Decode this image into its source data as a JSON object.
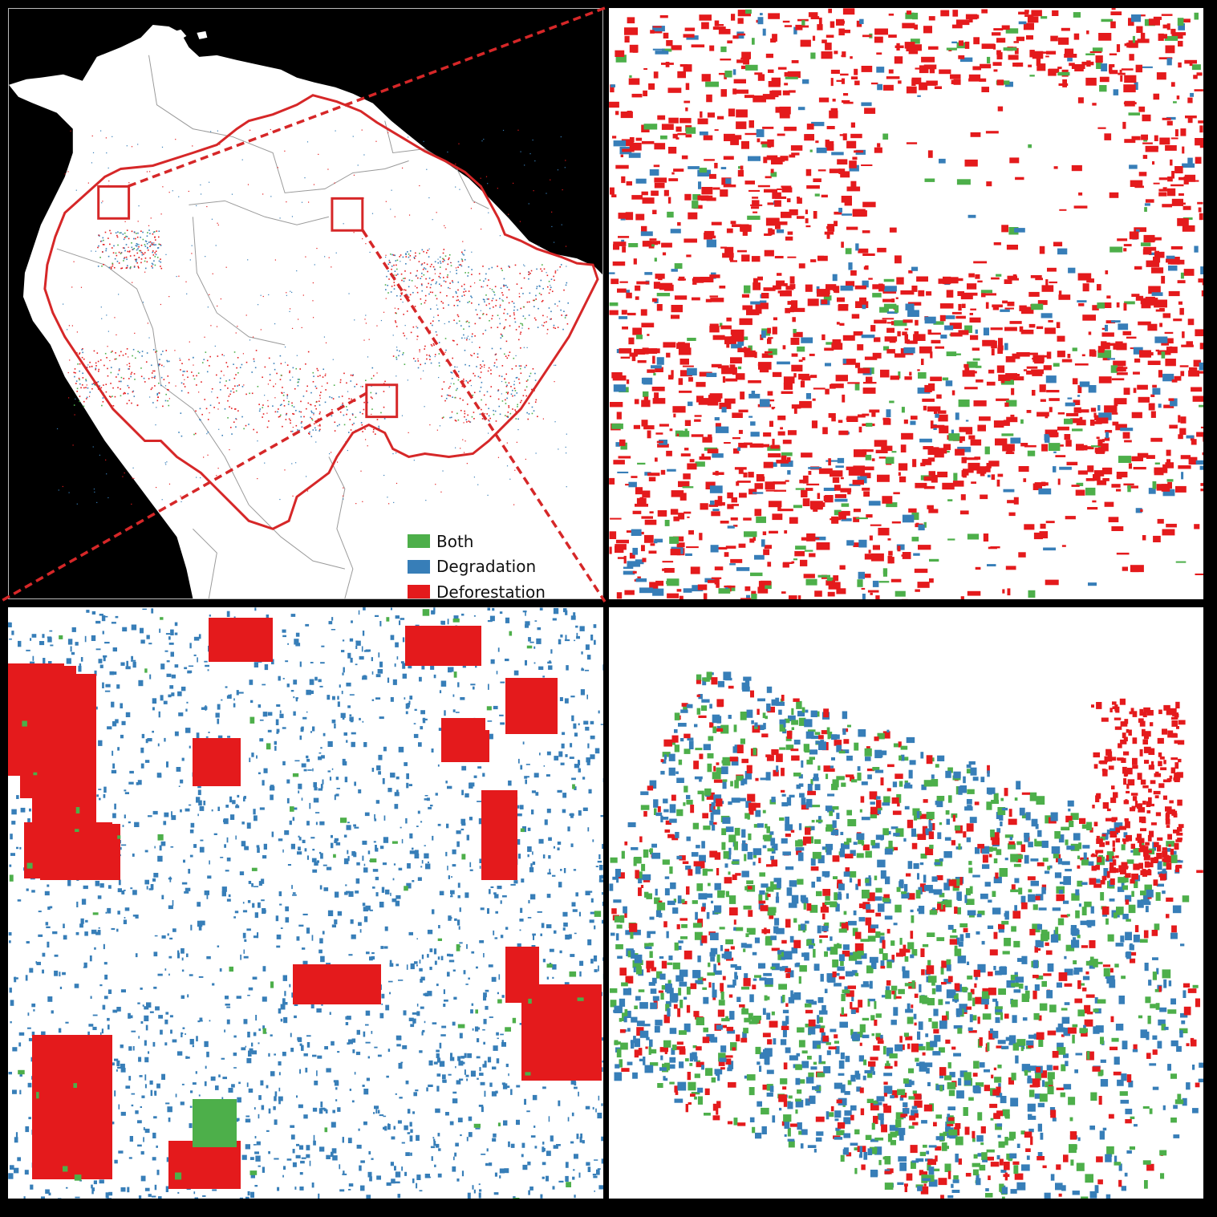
{
  "colors": {
    "both": "#4daf4a",
    "degradation": "#377eb8",
    "deforestation": "#e41a1c",
    "ocean": "#000000",
    "land": "#ffffff",
    "boundary": "#d62728",
    "borders": "#9a9a9a"
  },
  "legend": {
    "items": [
      {
        "key": "both",
        "label": "Both",
        "color": "#4daf4a"
      },
      {
        "key": "degradation",
        "label": "Degradation",
        "color": "#377eb8"
      },
      {
        "key": "deforestation",
        "label": "Deforestation",
        "color": "#e41a1c"
      }
    ]
  },
  "panels": {
    "overview": {
      "description_name": "amazon-basin-overview"
    },
    "zoom_top_right": {
      "dominant": "deforestation"
    },
    "zoom_bottom_left": {
      "dominant": "degradation"
    },
    "zoom_bottom_right": {
      "dominant": "mixed"
    }
  }
}
